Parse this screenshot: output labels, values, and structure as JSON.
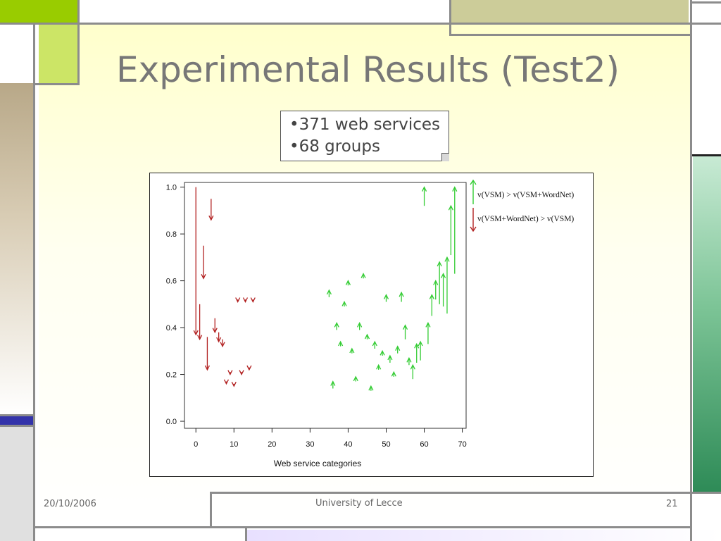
{
  "slide": {
    "title": "Experimental Results (Test2)",
    "bullets": [
      "•371 web services",
      "•68 groups"
    ]
  },
  "footer": {
    "date": "20/10/2006",
    "center": "University of Lecce",
    "page": "21"
  },
  "colors": {
    "decrease": "#b22222",
    "increase": "#33cc33",
    "title": "#777777",
    "frame": "#8c8c8c"
  },
  "chart_data": {
    "type": "scatter",
    "title": "",
    "xlabel": "Web service categories",
    "ylabel": "",
    "xlim": [
      -3,
      71
    ],
    "ylim": [
      -0.03,
      1.02
    ],
    "xticks": [
      0,
      10,
      20,
      30,
      40,
      50,
      60,
      70
    ],
    "yticks": [
      0.0,
      0.2,
      0.4,
      0.6,
      0.8,
      1.0
    ],
    "xtick_labels": [
      "0",
      "10",
      "20",
      "30",
      "40",
      "50",
      "60",
      "70"
    ],
    "ytick_labels": [
      "0.0",
      "0.2",
      "0.4",
      "0.6",
      "0.8",
      "1.0"
    ],
    "grid": false,
    "legend_position": "right",
    "series": [
      {
        "name": "v(VSM) > v(VSM+WordNet)",
        "direction": "up",
        "color": "#33cc33",
        "points": [
          {
            "x": 35,
            "from": 0.53,
            "to": 0.56
          },
          {
            "x": 36,
            "from": 0.14,
            "to": 0.17
          },
          {
            "x": 37,
            "from": 0.39,
            "to": 0.42
          },
          {
            "x": 38,
            "from": 0.32,
            "to": 0.34
          },
          {
            "x": 39,
            "from": 0.49,
            "to": 0.51
          },
          {
            "x": 40,
            "from": 0.58,
            "to": 0.6
          },
          {
            "x": 41,
            "from": 0.29,
            "to": 0.31
          },
          {
            "x": 42,
            "from": 0.17,
            "to": 0.19
          },
          {
            "x": 43,
            "from": 0.39,
            "to": 0.42
          },
          {
            "x": 44,
            "from": 0.61,
            "to": 0.63
          },
          {
            "x": 45,
            "from": 0.35,
            "to": 0.37
          },
          {
            "x": 46,
            "from": 0.13,
            "to": 0.15
          },
          {
            "x": 47,
            "from": 0.31,
            "to": 0.34
          },
          {
            "x": 48,
            "from": 0.22,
            "to": 0.24
          },
          {
            "x": 49,
            "from": 0.28,
            "to": 0.3
          },
          {
            "x": 50,
            "from": 0.51,
            "to": 0.54
          },
          {
            "x": 51,
            "from": 0.25,
            "to": 0.28
          },
          {
            "x": 52,
            "from": 0.19,
            "to": 0.21
          },
          {
            "x": 53,
            "from": 0.29,
            "to": 0.32
          },
          {
            "x": 54,
            "from": 0.51,
            "to": 0.55
          },
          {
            "x": 55,
            "from": 0.35,
            "to": 0.41
          },
          {
            "x": 56,
            "from": 0.24,
            "to": 0.27
          },
          {
            "x": 57,
            "from": 0.18,
            "to": 0.24
          },
          {
            "x": 58,
            "from": 0.25,
            "to": 0.33
          },
          {
            "x": 59,
            "from": 0.26,
            "to": 0.34
          },
          {
            "x": 60,
            "from": 0.92,
            "to": 1.0
          },
          {
            "x": 61,
            "from": 0.33,
            "to": 0.42
          },
          {
            "x": 62,
            "from": 0.45,
            "to": 0.54
          },
          {
            "x": 63,
            "from": 0.52,
            "to": 0.6
          },
          {
            "x": 64,
            "from": 0.5,
            "to": 0.68
          },
          {
            "x": 65,
            "from": 0.49,
            "to": 0.63
          },
          {
            "x": 66,
            "from": 0.46,
            "to": 0.7
          },
          {
            "x": 67,
            "from": 0.71,
            "to": 0.92
          },
          {
            "x": 68,
            "from": 0.63,
            "to": 1.0
          }
        ]
      },
      {
        "name": "v(VSM+WordNet) > v(VSM)",
        "direction": "down",
        "color": "#b22222",
        "points": [
          {
            "x": 0,
            "from": 1.0,
            "to": 0.37
          },
          {
            "x": 1,
            "from": 0.5,
            "to": 0.35
          },
          {
            "x": 2,
            "from": 0.75,
            "to": 0.61
          },
          {
            "x": 3,
            "from": 0.36,
            "to": 0.22
          },
          {
            "x": 4,
            "from": 0.95,
            "to": 0.86
          },
          {
            "x": 5,
            "from": 0.44,
            "to": 0.38
          },
          {
            "x": 6,
            "from": 0.38,
            "to": 0.34
          },
          {
            "x": 7,
            "from": 0.35,
            "to": 0.32
          },
          {
            "x": 8,
            "from": 0.17,
            "to": 0.16
          },
          {
            "x": 9,
            "from": 0.21,
            "to": 0.2
          },
          {
            "x": 10,
            "from": 0.16,
            "to": 0.15
          },
          {
            "x": 11,
            "from": 0.52,
            "to": 0.51
          },
          {
            "x": 12,
            "from": 0.21,
            "to": 0.2
          },
          {
            "x": 13,
            "from": 0.52,
            "to": 0.51
          },
          {
            "x": 14,
            "from": 0.23,
            "to": 0.22
          },
          {
            "x": 15,
            "from": 0.52,
            "to": 0.51
          }
        ]
      }
    ]
  }
}
